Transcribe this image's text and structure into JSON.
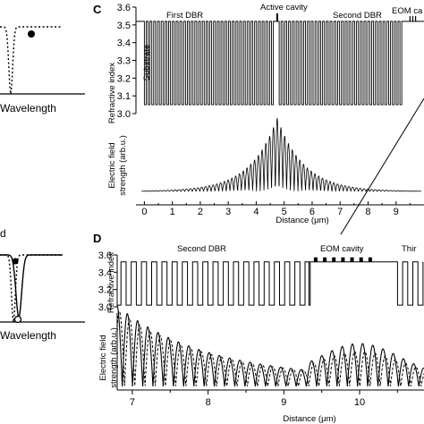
{
  "chart_data": [
    {
      "panel": "",
      "type": "line",
      "xlabel": "Wavelength",
      "series": [
        {
          "shape": "dip",
          "style": "dotted",
          "marker": "filled-circle"
        }
      ]
    },
    {
      "panel": "",
      "type": "line",
      "top_text": "d",
      "xlabel": "Wavelength",
      "series": [
        {
          "shape": "dip",
          "style": "dotted",
          "marker": "filled-circle"
        },
        {
          "shape": "dip",
          "style": "solid",
          "marker": "open-circle"
        }
      ]
    },
    {
      "panel": "C",
      "type": "line",
      "xlabel": "Distance (μm)",
      "x_ticks": [
        0,
        1,
        2,
        3,
        4,
        5,
        6,
        7,
        8,
        9
      ],
      "xlim": [
        -0.3,
        10.0
      ],
      "top": {
        "ylabel": "Refractive index",
        "ylim": [
          3.0,
          3.6
        ],
        "y_ticks": [
          "3.0",
          "3.1",
          "3.2",
          "3.3",
          "3.4",
          "3.5",
          "3.6"
        ],
        "n_high": 3.52,
        "n_low": 3.05,
        "labels": {
          "substrate": "Substrate",
          "dbr1": "First DBR",
          "cavity": "Active cavity",
          "dbr2": "Second DBR",
          "eom": "EOM ca"
        },
        "dbr1_periods": 35,
        "cavity_x": [
          4.68,
          4.82
        ],
        "dbr2_start": 4.82
      },
      "bottom": {
        "ylabel": "Electric field strength (arb.u.)",
        "peak_x": 4.75,
        "decay_um": 0.95,
        "period_um": 0.135
      }
    },
    {
      "panel": "D",
      "type": "line",
      "xlabel": "Distance (μm)",
      "x_ticks": [
        7,
        8,
        9,
        10
      ],
      "xlim": [
        6.8,
        10.85
      ],
      "top": {
        "ylabel": "Refractive index",
        "ylim": [
          3.0,
          3.6
        ],
        "y_ticks": [
          "3.0",
          "3.2",
          "3.4",
          "3.6"
        ],
        "n_high": 3.52,
        "n_low": 3.02,
        "labels": {
          "dbr2": "Second DBR",
          "eom": "EOM cavity",
          "dbr3": "Thir"
        },
        "eom_x": [
          9.33,
          10.5
        ],
        "dbr2_period_um": 0.135
      },
      "bottom": {
        "ylabel": "Electric field strength (arb.u.)",
        "series": [
          {
            "style": "solid"
          },
          {
            "style": "dashed"
          }
        ]
      }
    }
  ]
}
